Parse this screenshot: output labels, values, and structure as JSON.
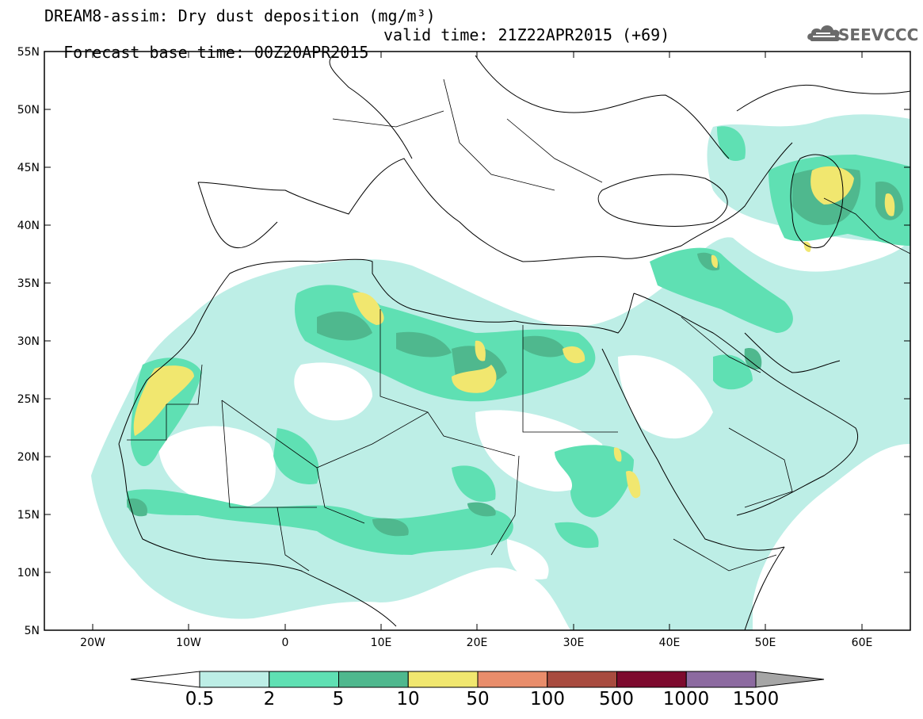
{
  "header": {
    "title_line1": "DREAM8-assim: Dry dust deposition (mg/m³)",
    "base_time": "Forecast base time: 00Z20APR2015",
    "valid_time": "valid time: 21Z22APR2015 (+69)",
    "logo_text": "SEEVCCC"
  },
  "axes": {
    "lat_labels": [
      "55N",
      "50N",
      "45N",
      "40N",
      "35N",
      "30N",
      "25N",
      "20N",
      "15N",
      "10N",
      "5N"
    ],
    "lon_labels": [
      "20W",
      "10W",
      "0",
      "10E",
      "20E",
      "30E",
      "40E",
      "50E",
      "60E"
    ]
  },
  "colorbar": {
    "labels": [
      "0.5",
      "2",
      "5",
      "10",
      "50",
      "100",
      "500",
      "1000",
      "1500"
    ],
    "colors": [
      "#bdeee6",
      "#5fe0b3",
      "#4fb88e",
      "#f1e76f",
      "#e98d6b",
      "#a84b3f",
      "#7d0a2e",
      "#8c6aa0"
    ]
  },
  "map": {
    "lon_range": [
      -25,
      65
    ],
    "lat_range": [
      5,
      55
    ],
    "field_colors": {
      "level1": "#bdeee6",
      "level2": "#5fe0b3",
      "level3": "#4fb88e",
      "level4": "#f1e76f"
    }
  }
}
